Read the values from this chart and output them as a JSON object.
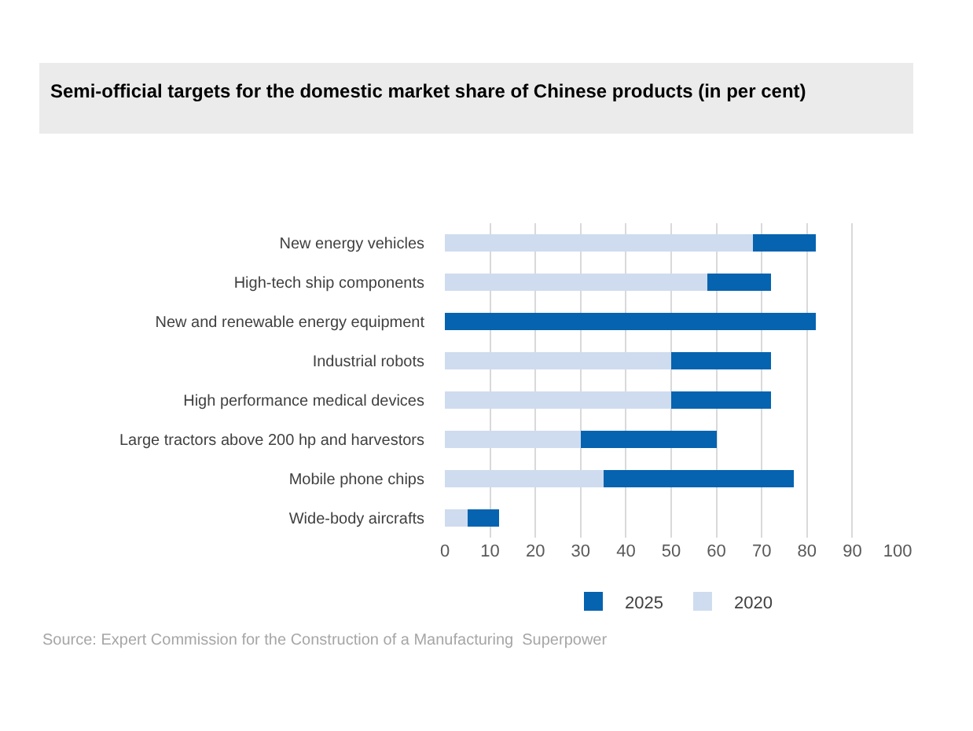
{
  "chart_data": {
    "type": "bar",
    "orientation": "horizontal",
    "stacked": true,
    "title": "Semi-official targets for the domestic market share of Chinese products (in per cent)",
    "categories": [
      "New energy vehicles",
      "High-tech ship components",
      "New and renewable energy equipment",
      "Industrial robots",
      "High performance medical devices",
      "Large tractors above 200 hp and harvestors",
      "Mobile phone chips",
      "Wide-body aircrafts"
    ],
    "series": [
      {
        "name": "2020",
        "color": "#cfdcef",
        "values": [
          68,
          58,
          null,
          50,
          50,
          30,
          35,
          5
        ]
      },
      {
        "name": "2025",
        "color": "#0563b0",
        "values": [
          14,
          14,
          82,
          22,
          22,
          30,
          42,
          7
        ]
      }
    ],
    "xlim": [
      0,
      100
    ],
    "xticks": [
      0,
      10,
      20,
      30,
      40,
      50,
      60,
      70,
      80,
      90,
      100
    ],
    "grid": "x",
    "legend": "bottom",
    "annotations": [
      "Source: Expert Commission for the Construction of a Manufacturing  Superpower"
    ]
  }
}
